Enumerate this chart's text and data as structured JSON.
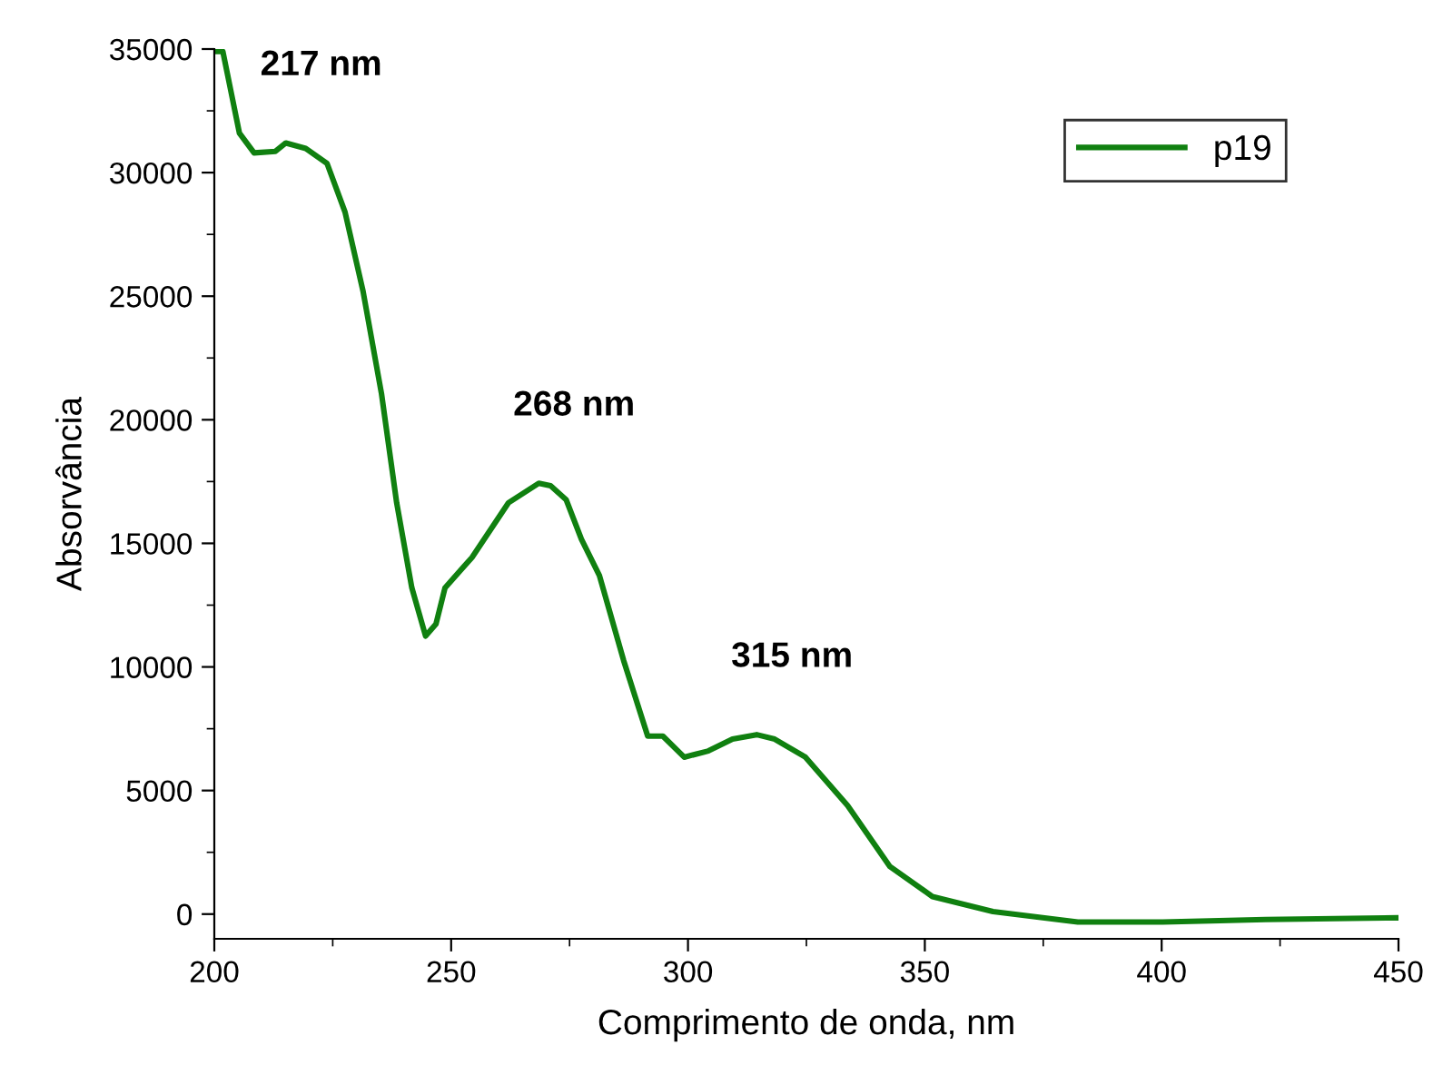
{
  "chart_data": {
    "type": "line",
    "xlabel": "Comprimento de onda, nm",
    "ylabel": "Absorvância",
    "xlim": [
      200,
      450
    ],
    "xticks": [
      200,
      250,
      300,
      350,
      400,
      450
    ],
    "ylim": [
      -1000,
      35000
    ],
    "yticks": [
      0,
      5000,
      10000,
      15000,
      20000,
      25000,
      30000,
      35000
    ],
    "grid": false,
    "legend": "top right",
    "marker": "none",
    "line_style": "solid",
    "series": [
      {
        "name": "p19",
        "color": "#108010",
        "x": [
          200,
          201.8,
          205.3,
          208.4,
          212.9,
          215.1,
          219.3,
          223.8,
          227.6,
          231.4,
          235.3,
          238.5,
          241.7,
          244.6,
          246.8,
          248.7,
          254.4,
          262.1,
          268.5,
          271,
          274.3,
          277.5,
          281.3,
          286.4,
          291.5,
          294.7,
          299.2,
          304.3,
          309.4,
          314.5,
          318.3,
          324.8,
          333.7,
          342.6,
          351.6,
          364.4,
          382.3,
          400.2,
          421.9,
          450
        ],
        "values": [
          34900,
          34900,
          31600,
          30800,
          30860,
          31200,
          30980,
          30370,
          28400,
          25200,
          21050,
          16640,
          13200,
          11250,
          11740,
          13200,
          14430,
          16640,
          17430,
          17330,
          16760,
          15170,
          13700,
          10270,
          7200,
          7200,
          6350,
          6600,
          7080,
          7260,
          7080,
          6350,
          4390,
          1930,
          710,
          100,
          -320,
          -320,
          -220,
          -150
        ]
      }
    ],
    "annotations": [
      {
        "text": "217 nm",
        "x": 215.1,
        "y": 31200
      },
      {
        "text": "268 nm",
        "x": 268.5,
        "y": 17430
      },
      {
        "text": "315 nm",
        "x": 314.5,
        "y": 7260
      }
    ]
  }
}
